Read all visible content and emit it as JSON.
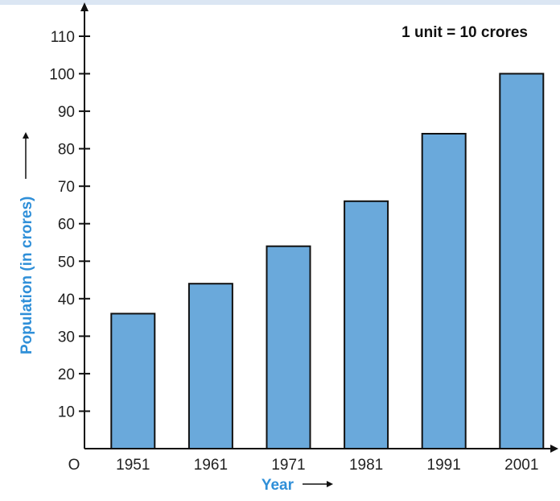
{
  "chart_data": {
    "type": "bar",
    "categories": [
      "1951",
      "1961",
      "1971",
      "1981",
      "1991",
      "2001"
    ],
    "values": [
      36,
      44,
      54,
      66,
      84,
      100
    ],
    "title": "",
    "xlabel": "Year",
    "ylabel": "Population (in crores)",
    "annotation": "1 unit = 10 crores",
    "origin_label": "O",
    "ylim": [
      0,
      110
    ],
    "yticks": [
      10,
      20,
      30,
      40,
      50,
      60,
      70,
      80,
      90,
      100,
      110
    ],
    "grid": false,
    "colors": {
      "bar_fill": "#6aa9db",
      "bar_stroke": "#111111",
      "axis": "#111111",
      "label": "#2f8fd8"
    }
  }
}
